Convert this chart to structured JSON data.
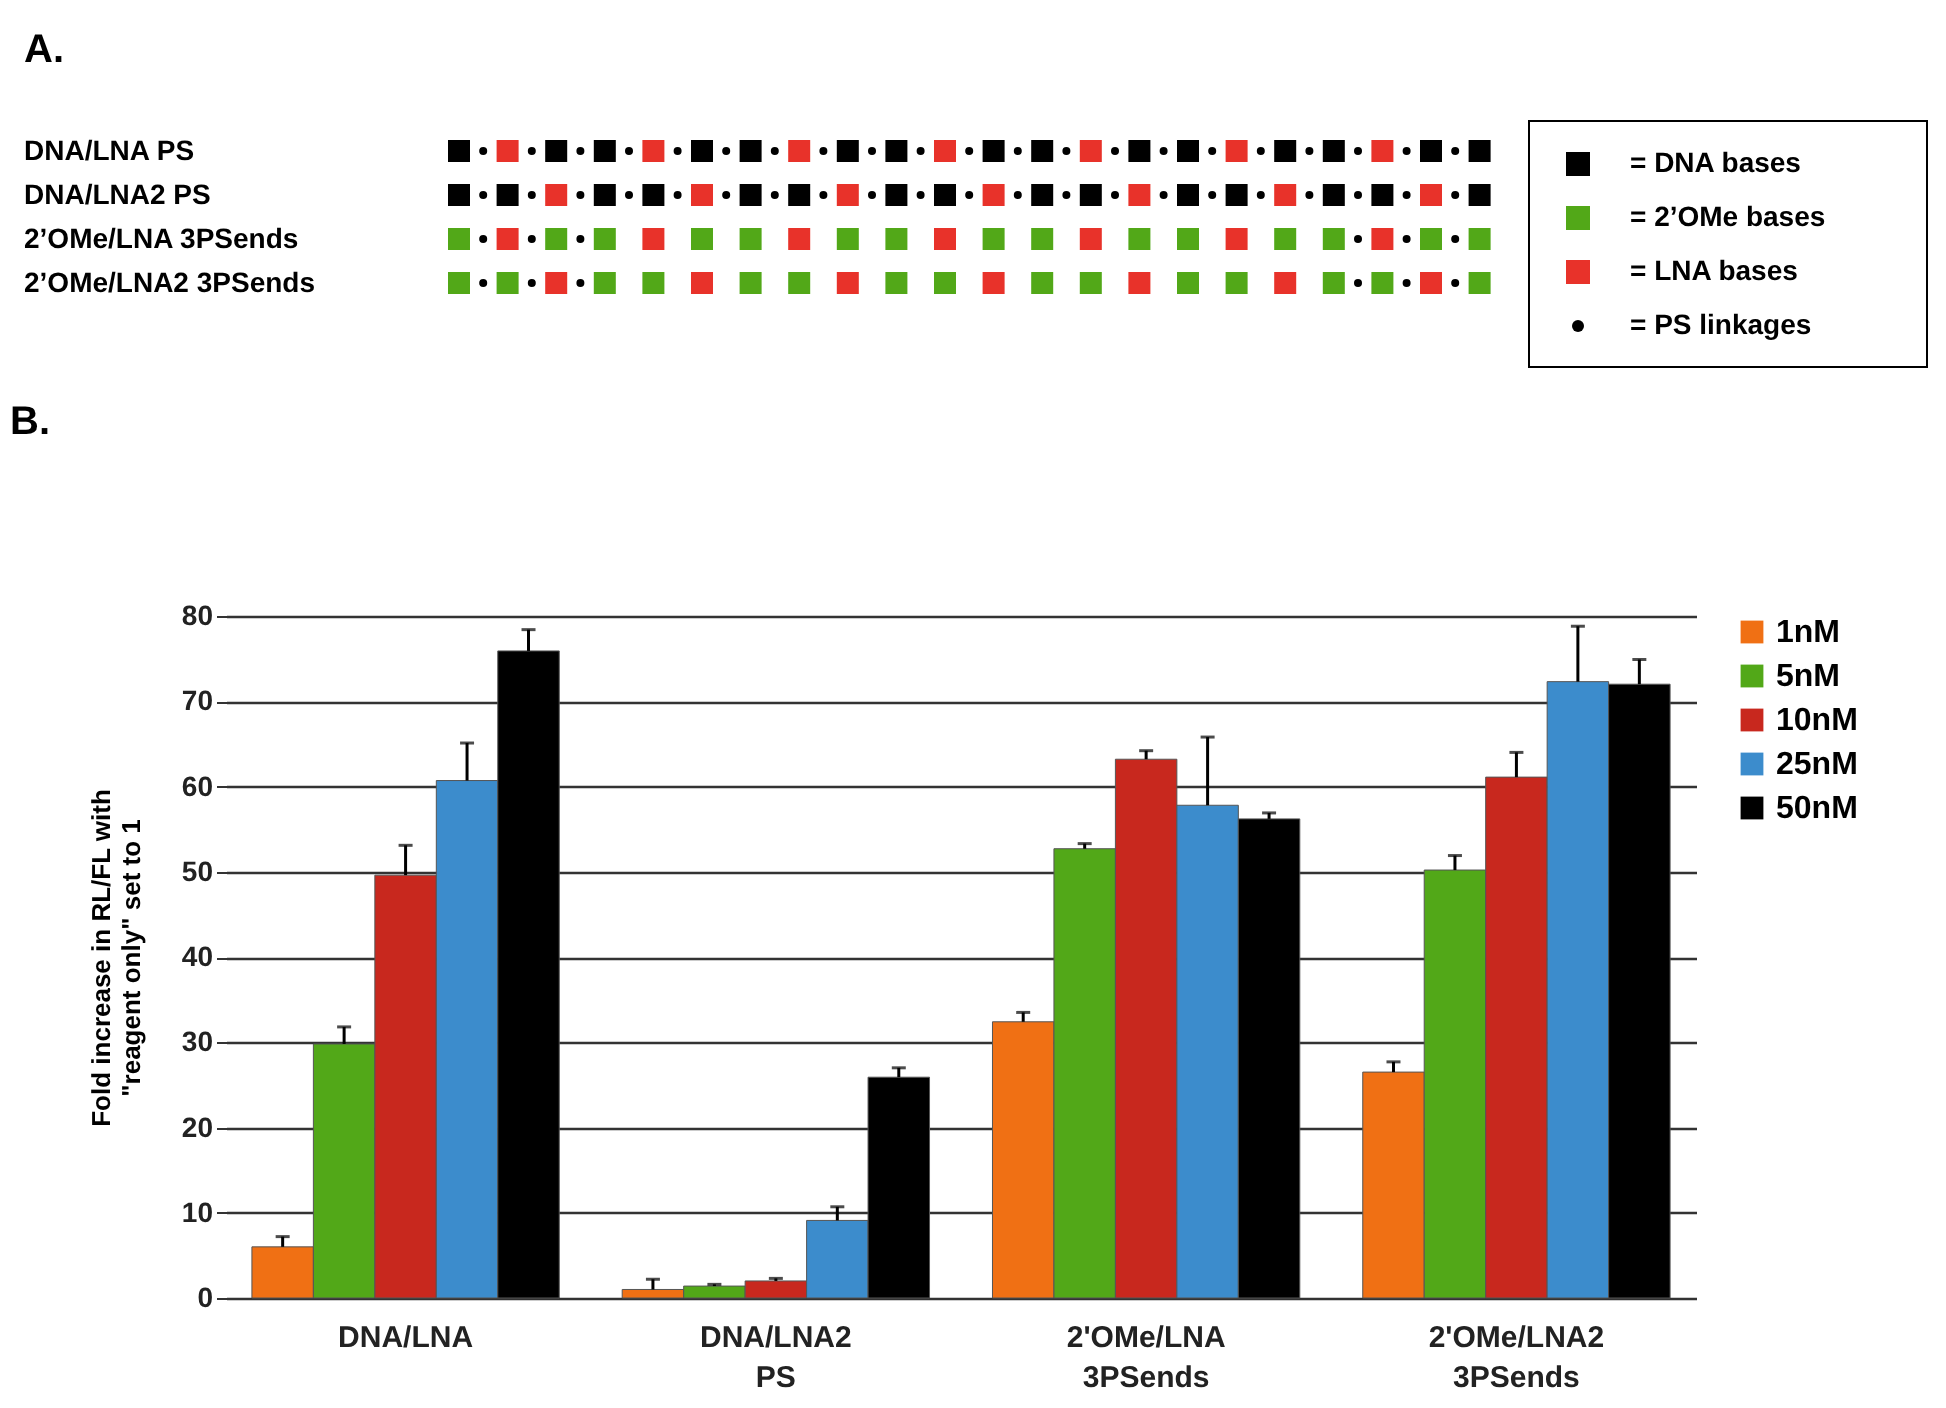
{
  "chart_data": [
    {
      "type": "other",
      "title": "A.",
      "annotations": [
        "DNA/LNA PS",
        "DNA/LNA2 PS",
        "2’OMe/LNA 3PSends",
        "2’OMe/LNA2 3PSends",
        "=  DNA bases",
        "=  2’OMe bases",
        "=  LNA bases",
        "=  PS linkages"
      ]
    },
    {
      "type": "bar",
      "title": "B.",
      "ylabel": "Fold increase in RL/FL with \"reagent only\" set to 1",
      "categories": [
        "DNA/LNA",
        "DNA/LNA2 PS",
        "2'OMe/LNA 3PSends",
        "2'OMe/LNA2 3PSends"
      ],
      "series": [
        {
          "name": "1nM",
          "color": "#f07014",
          "values": [
            6,
            1.0,
            32.4,
            26.5
          ],
          "errors": [
            [
              6,
              7.2
            ],
            [
              1.0,
              2.2
            ],
            [
              32.4,
              33.5
            ],
            [
              26.5,
              27.7
            ]
          ]
        },
        {
          "name": "5nM",
          "color": "#52a818",
          "values": [
            29.8,
            1.4,
            52.7,
            50.2
          ],
          "errors": [
            [
              29.8,
              31.8
            ],
            [
              1.4,
              1.6
            ],
            [
              52.7,
              53.3
            ],
            [
              50.2,
              51.9
            ]
          ]
        },
        {
          "name": "10nM",
          "color": "#c8281e",
          "values": [
            49.6,
            2.0,
            63.2,
            61.1
          ],
          "errors": [
            [
              49.6,
              53.1
            ],
            [
              2.0,
              2.3
            ],
            [
              63.2,
              64.2
            ],
            [
              61.1,
              64.0
            ]
          ]
        },
        {
          "name": "25nM",
          "color": "#3c8ccc",
          "values": [
            60.7,
            9.1,
            57.8,
            72.3
          ],
          "errors": [
            [
              60.7,
              65.1
            ],
            [
              9.1,
              10.7
            ],
            [
              57.8,
              65.8
            ],
            [
              72.3,
              78.8
            ]
          ]
        },
        {
          "name": "50nM",
          "color": "#000000",
          "values": [
            75.9,
            25.9,
            56.2,
            72.0
          ],
          "errors": [
            [
              75.9,
              78.4
            ],
            [
              25.9,
              27.0
            ],
            [
              56.2,
              56.9
            ],
            [
              72.0,
              74.9
            ]
          ]
        }
      ],
      "ylim": [
        0,
        80
      ],
      "yticks": [
        0,
        10,
        20,
        30,
        40,
        50,
        60,
        70,
        80
      ],
      "grid": "y",
      "legend": "right"
    }
  ]
}
